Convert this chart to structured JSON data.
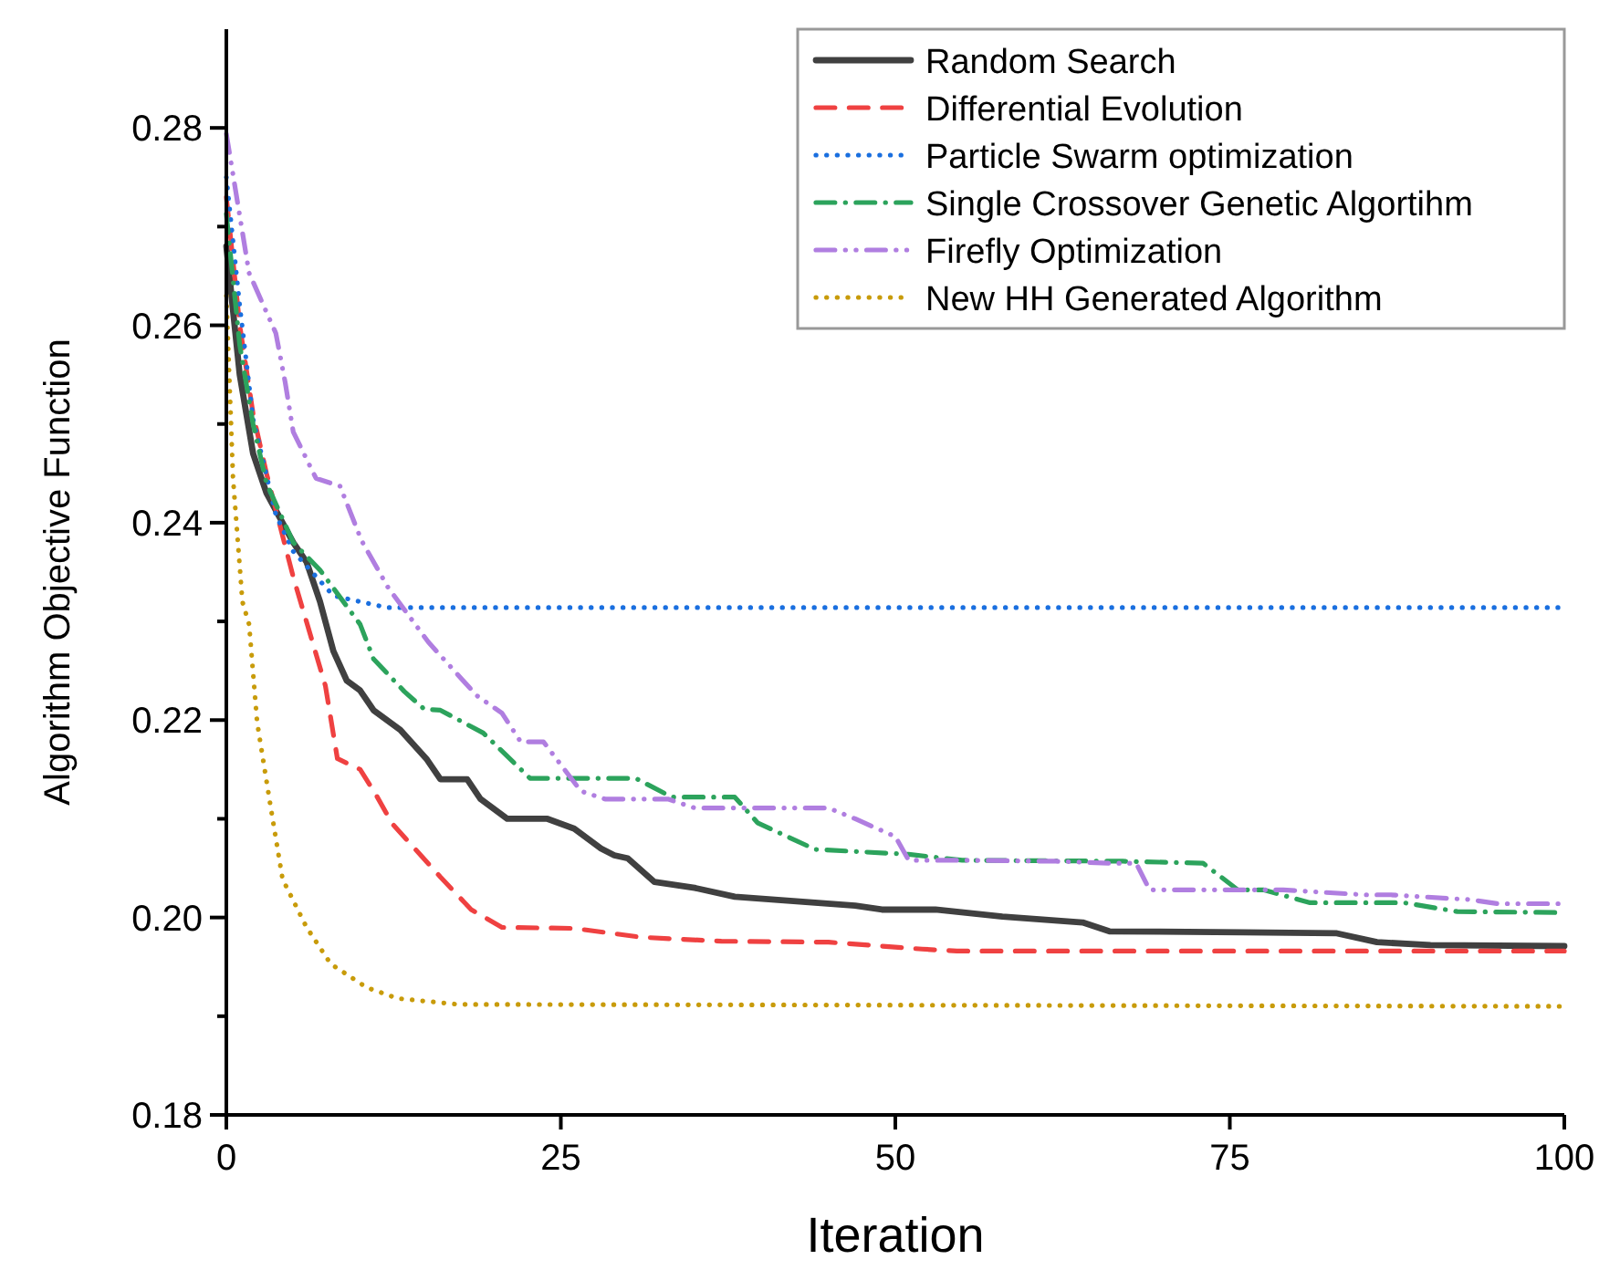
{
  "chart_data": {
    "type": "line",
    "xlabel": "Iteration",
    "ylabel": "Algorithm Objective Function",
    "xlim": [
      0,
      100
    ],
    "xticks": [
      0,
      25,
      50,
      75,
      100
    ],
    "ylim": [
      0.18,
      0.29
    ],
    "yticks": [
      0.18,
      {
        "value": 0.19,
        "label": null
      },
      {
        "value": 0.2,
        "label": "0.20"
      },
      {
        "value": 0.21,
        "label": null
      },
      0.22,
      {
        "value": 0.23,
        "label": null
      },
      0.24,
      {
        "value": 0.25,
        "label": null
      },
      0.26,
      {
        "value": 0.27,
        "label": null
      },
      0.28
    ],
    "grid": false,
    "legend": "top right",
    "series": [
      {
        "name": "Random Search",
        "color": "#404040",
        "line_style": "solid",
        "x": [
          0,
          1,
          2,
          3,
          5,
          6,
          7,
          8,
          9,
          10,
          11,
          13,
          15,
          16,
          18,
          19,
          21,
          24,
          26,
          28,
          29,
          30,
          32,
          35,
          38,
          47,
          49,
          53,
          58,
          64,
          66,
          76,
          83,
          86,
          90,
          100
        ],
        "values": [
          0.268,
          0.255,
          0.247,
          0.243,
          0.238,
          0.236,
          0.232,
          0.227,
          0.224,
          0.223,
          0.221,
          0.219,
          0.216,
          0.214,
          0.214,
          0.212,
          0.21,
          0.21,
          0.209,
          0.207,
          0.2063,
          0.206,
          0.2036,
          0.203,
          0.2021,
          0.2012,
          0.2008,
          0.2008,
          0.2001,
          0.1995,
          0.1986,
          0.1985,
          0.1984,
          0.1975,
          0.1972,
          0.1971
        ]
      },
      {
        "name": "Differential Evolution",
        "color": "#ef4141",
        "line_style": "dashed",
        "x": [
          0,
          1,
          2,
          3,
          5,
          7.4,
          8.3,
          10,
          11.2,
          12.4,
          16,
          18.3,
          20.6,
          26,
          31,
          37,
          45,
          52,
          54.6,
          100
        ],
        "values": [
          0.273,
          0.26,
          0.251,
          0.245,
          0.2345,
          0.2235,
          0.2161,
          0.215,
          0.2124,
          0.2095,
          0.2041,
          0.2008,
          0.199,
          0.1989,
          0.198,
          0.1976,
          0.1975,
          0.1968,
          0.1966,
          0.1966
        ]
      },
      {
        "name": "Particle Swarm optimization",
        "color": "#1a6fdf",
        "line_style": "dotted",
        "x": [
          0,
          1,
          2,
          3.7,
          5,
          8,
          12,
          100
        ],
        "values": [
          0.275,
          0.262,
          0.2505,
          0.2408,
          0.2371,
          0.2326,
          0.2314,
          0.2314
        ]
      },
      {
        "name": "Single Crossover Genetic Algortihm",
        "color": "#2ca35c",
        "line_style": "dashdot",
        "x": [
          0,
          1,
          2,
          3,
          5,
          7,
          10,
          11,
          13.3,
          14.8,
          16,
          19.2,
          22.7,
          30.6,
          33.3,
          38,
          39.7,
          44,
          51,
          55,
          67,
          73,
          75.6,
          77.5,
          81,
          88,
          92,
          100
        ],
        "values": [
          0.2713,
          0.258,
          0.25,
          0.244,
          0.238,
          0.2352,
          0.2297,
          0.2262,
          0.2229,
          0.2211,
          0.221,
          0.2187,
          0.2141,
          0.2141,
          0.2122,
          0.2122,
          0.2096,
          0.2069,
          0.2064,
          0.2058,
          0.2057,
          0.2055,
          0.2028,
          0.2028,
          0.2015,
          0.2015,
          0.2006,
          0.2005
        ]
      },
      {
        "name": "Firefly Optimization",
        "color": "#b07ee0",
        "line_style": "dashdotdot",
        "x": [
          0,
          1.7,
          3.7,
          4.4,
          5,
          6.7,
          8.5,
          10.1,
          12.1,
          15.1,
          18.7,
          20.6,
          22,
          23.7,
          26.5,
          28.3,
          33,
          35,
          45,
          47,
          50,
          51,
          55,
          62,
          66,
          68,
          69,
          79,
          85,
          87,
          93,
          95,
          100
        ],
        "values": [
          0.2794,
          0.2653,
          0.2592,
          0.2542,
          0.2492,
          0.2445,
          0.2437,
          0.2382,
          0.2334,
          0.2279,
          0.2225,
          0.2207,
          0.2178,
          0.2178,
          0.2128,
          0.212,
          0.212,
          0.2111,
          0.2111,
          0.21,
          0.2082,
          0.2058,
          0.2058,
          0.2057,
          0.2055,
          0.2055,
          0.2028,
          0.2028,
          0.2023,
          0.2023,
          0.2018,
          0.2014,
          0.2014
        ]
      },
      {
        "name": "New HH Generated Algorithm",
        "color": "#c89b0a",
        "line_style": "dotted",
        "x": [
          0,
          0.5,
          1.2,
          1.7,
          2.3,
          3.3,
          4.2,
          6,
          7.8,
          10.5,
          12.8,
          17.3,
          100
        ],
        "values": [
          0.263,
          0.2445,
          0.232,
          0.2297,
          0.2198,
          0.2113,
          0.2039,
          0.199,
          0.1953,
          0.1929,
          0.1918,
          0.1912,
          0.191
        ]
      }
    ]
  }
}
